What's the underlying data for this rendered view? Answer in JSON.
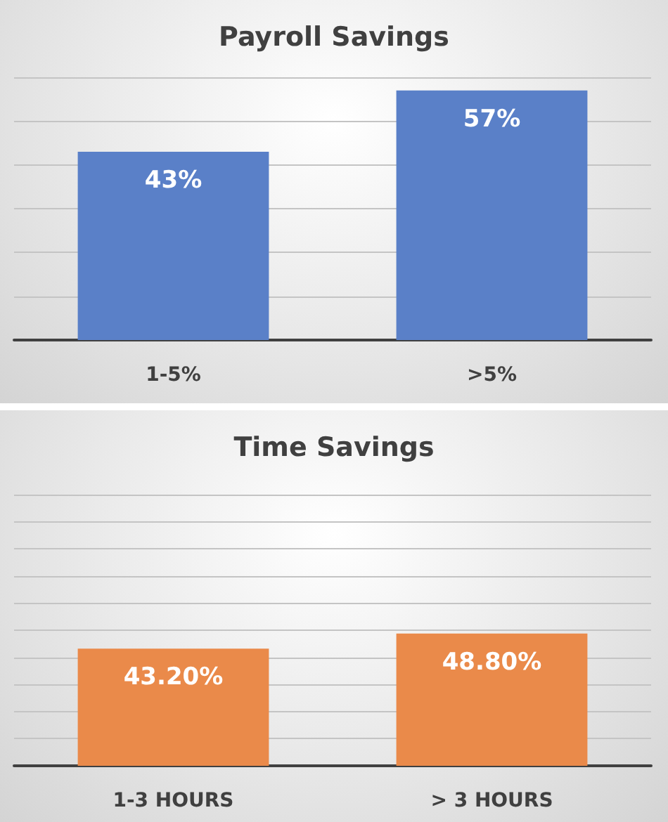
{
  "chart_data": [
    {
      "type": "bar",
      "title": "Payroll Savings",
      "categories": [
        "1-5%",
        ">5%"
      ],
      "values": [
        43,
        57
      ],
      "value_labels": [
        "43%",
        "57%"
      ],
      "color": "#5a80c8",
      "ylim": [
        0,
        60
      ],
      "yticks": [
        {
          "value": 0,
          "label": null
        },
        {
          "value": 10,
          "label": null
        },
        {
          "value": 20,
          "label": null
        },
        {
          "value": 30,
          "label": null
        },
        {
          "value": 40,
          "label": null
        },
        {
          "value": 50,
          "label": null
        },
        {
          "value": 60,
          "label": null
        }
      ],
      "grid": "y",
      "tick_labels": "x"
    },
    {
      "type": "bar",
      "title": "Time Savings",
      "categories": [
        "1-3 HOURS",
        "> 3 HOURS"
      ],
      "values": [
        43.2,
        48.8
      ],
      "value_labels": [
        "43.20%",
        "48.80%"
      ],
      "color": "#ea8a4a",
      "ylim": [
        0,
        100
      ],
      "yticks": [
        {
          "value": 0,
          "label": null
        },
        {
          "value": 10,
          "label": null
        },
        {
          "value": 20,
          "label": null
        },
        {
          "value": 30,
          "label": null
        },
        {
          "value": 40,
          "label": null
        },
        {
          "value": 50,
          "label": null
        },
        {
          "value": 60,
          "label": null
        },
        {
          "value": 70,
          "label": null
        },
        {
          "value": 80,
          "label": null
        },
        {
          "value": 90,
          "label": null
        },
        {
          "value": 100,
          "label": null
        }
      ],
      "grid": "y",
      "tick_labels": "x"
    }
  ]
}
